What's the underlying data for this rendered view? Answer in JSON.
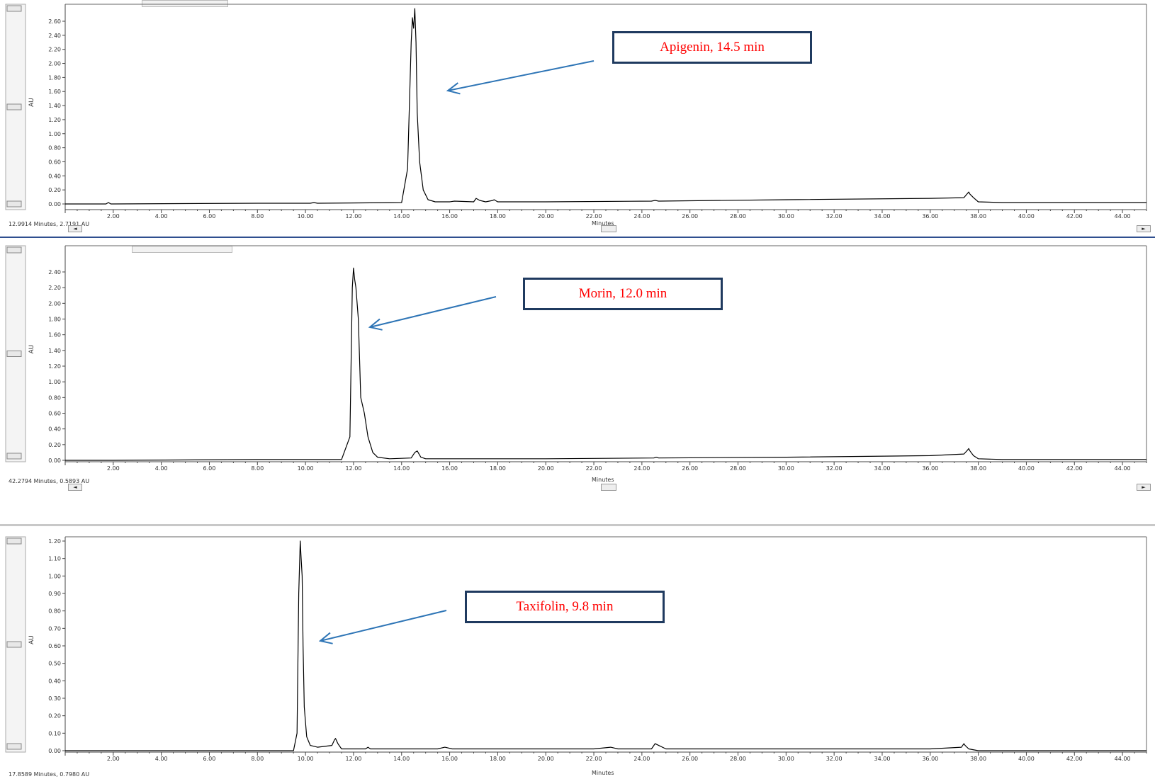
{
  "chart_data": [
    {
      "type": "line",
      "xlabel": "Minutes",
      "ylabel": "AU",
      "xlim": [
        0,
        45
      ],
      "ylim": [
        0,
        2.7
      ],
      "xticks": [
        "2.00",
        "4.00",
        "6.00",
        "8.00",
        "10.00",
        "12.00",
        "14.00",
        "16.00",
        "18.00",
        "20.00",
        "22.00",
        "24.00",
        "26.00",
        "28.00",
        "30.00",
        "32.00",
        "34.00",
        "36.00",
        "38.00",
        "40.00",
        "42.00",
        "44.00"
      ],
      "yticks": [
        "0.00",
        "0.20",
        "0.40",
        "0.60",
        "0.80",
        "1.00",
        "1.20",
        "1.40",
        "1.60",
        "1.80",
        "2.00",
        "2.20",
        "2.40",
        "2.60"
      ],
      "cursor_readout": "12.9914 Minutes, 2.7191 AU",
      "annotation": {
        "text": "Apigenin, 14.5 min",
        "x": 14.5
      },
      "series": [
        {
          "x": [
            0,
            1.7,
            1.8,
            1.9,
            8.0,
            10.2,
            10.35,
            10.5,
            14.0,
            14.25,
            14.4,
            14.45,
            14.5,
            14.55,
            14.6,
            14.65,
            14.75,
            14.9,
            15.1,
            15.4,
            16.0,
            16.2,
            17.0,
            17.1,
            17.25,
            17.5,
            17.8,
            17.85,
            18.0,
            20.0,
            24.4,
            24.55,
            24.7,
            30.0,
            36.0,
            37.4,
            37.55,
            37.6,
            37.65,
            37.8,
            38.0,
            39.0,
            45.0
          ],
          "values": [
            0.0,
            0.0,
            0.02,
            0.0,
            0.01,
            0.01,
            0.02,
            0.01,
            0.02,
            0.5,
            2.3,
            2.65,
            2.5,
            2.78,
            2.3,
            1.3,
            0.6,
            0.2,
            0.06,
            0.03,
            0.03,
            0.04,
            0.03,
            0.08,
            0.05,
            0.03,
            0.05,
            0.06,
            0.03,
            0.03,
            0.04,
            0.05,
            0.04,
            0.06,
            0.08,
            0.09,
            0.15,
            0.17,
            0.14,
            0.09,
            0.03,
            0.02,
            0.02
          ]
        }
      ]
    },
    {
      "type": "line",
      "xlabel": "Minutes",
      "ylabel": "AU",
      "xlim": [
        0,
        45
      ],
      "ylim": [
        0,
        2.5
      ],
      "xticks": [
        "2.00",
        "4.00",
        "6.00",
        "8.00",
        "10.00",
        "12.00",
        "14.00",
        "16.00",
        "18.00",
        "20.00",
        "22.00",
        "24.00",
        "26.00",
        "28.00",
        "30.00",
        "32.00",
        "34.00",
        "36.00",
        "38.00",
        "40.00",
        "42.00",
        "44.00"
      ],
      "yticks": [
        "0.00",
        "0.20",
        "0.40",
        "0.60",
        "0.80",
        "1.00",
        "1.20",
        "1.40",
        "1.60",
        "1.80",
        "2.00",
        "2.20",
        "2.40"
      ],
      "cursor_readout": "42.2794 Minutes, 0.5893 AU",
      "annotation": {
        "text": "Morin, 12.0 min",
        "x": 12.0
      },
      "series": [
        {
          "x": [
            0,
            2.0,
            8.0,
            11.5,
            11.85,
            11.95,
            12.0,
            12.05,
            12.1,
            12.2,
            12.3,
            12.45,
            12.6,
            12.8,
            13.0,
            13.5,
            14.4,
            14.55,
            14.65,
            14.8,
            15.0,
            16.0,
            20.0,
            24.5,
            24.6,
            24.7,
            30.0,
            36.0,
            37.4,
            37.55,
            37.6,
            37.65,
            37.8,
            38.0,
            39.0,
            45.0
          ],
          "values": [
            0.0,
            0.0,
            0.01,
            0.01,
            0.3,
            2.2,
            2.45,
            2.3,
            2.2,
            1.8,
            0.8,
            0.6,
            0.3,
            0.1,
            0.04,
            0.02,
            0.03,
            0.1,
            0.12,
            0.04,
            0.02,
            0.02,
            0.02,
            0.03,
            0.04,
            0.03,
            0.04,
            0.06,
            0.08,
            0.13,
            0.15,
            0.12,
            0.06,
            0.02,
            0.01,
            0.01
          ]
        }
      ]
    },
    {
      "type": "line",
      "xlabel": "Minutes",
      "ylabel": "AU",
      "xlim": [
        0,
        45
      ],
      "ylim": [
        0,
        1.25
      ],
      "xticks": [
        "2.00",
        "4.00",
        "6.00",
        "8.00",
        "10.00",
        "12.00",
        "14.00",
        "16.00",
        "18.00",
        "20.00",
        "22.00",
        "24.00",
        "26.00",
        "28.00",
        "30.00",
        "32.00",
        "34.00",
        "36.00",
        "38.00",
        "40.00",
        "42.00",
        "44.00"
      ],
      "yticks": [
        "0.00",
        "0.10",
        "0.20",
        "0.30",
        "0.40",
        "0.50",
        "0.60",
        "0.70",
        "0.80",
        "0.90",
        "1.00",
        "1.10",
        "1.20"
      ],
      "cursor_readout": "17.8589 Minutes, 0.7980 AU",
      "annotation": {
        "text": "Taxifolin, 9.8 min",
        "x": 9.8
      },
      "series": [
        {
          "x": [
            0,
            2.0,
            8.0,
            9.5,
            9.65,
            9.72,
            9.78,
            9.82,
            9.86,
            9.9,
            9.95,
            10.05,
            10.2,
            10.5,
            11.1,
            11.2,
            11.25,
            11.35,
            11.5,
            12.5,
            12.6,
            12.7,
            15.5,
            15.8,
            16.1,
            22.0,
            22.7,
            23.0,
            24.4,
            24.55,
            24.7,
            25.0,
            30.0,
            36.0,
            37.3,
            37.4,
            37.45,
            37.6,
            38.0,
            45.0
          ],
          "values": [
            0.0,
            0.0,
            0.0,
            0.0,
            0.1,
            0.9,
            1.2,
            1.1,
            1.0,
            0.6,
            0.25,
            0.08,
            0.03,
            0.02,
            0.03,
            0.06,
            0.07,
            0.04,
            0.01,
            0.01,
            0.02,
            0.01,
            0.01,
            0.02,
            0.01,
            0.01,
            0.02,
            0.01,
            0.01,
            0.04,
            0.03,
            0.01,
            0.01,
            0.01,
            0.02,
            0.04,
            0.03,
            0.01,
            0.0,
            0.0
          ]
        }
      ]
    }
  ]
}
